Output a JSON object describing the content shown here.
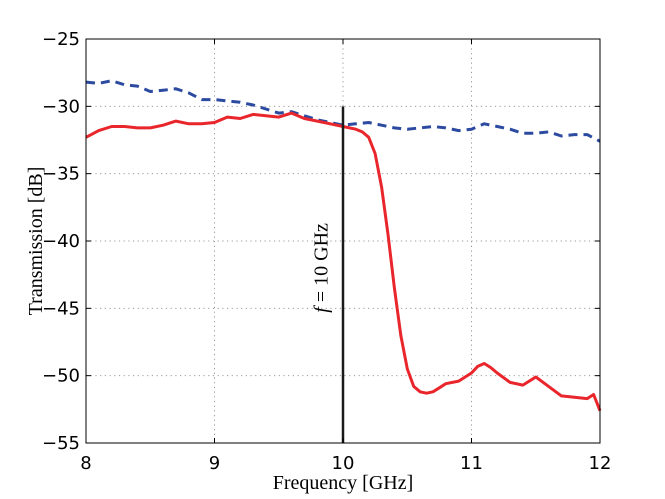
{
  "chart_data": {
    "type": "line",
    "title": "",
    "xlabel": "Frequency [GHz]",
    "ylabel": "Transmission [dB]",
    "xlim": [
      8,
      12
    ],
    "ylim": [
      -55,
      -25
    ],
    "xticks": [
      8,
      9,
      10,
      11,
      12
    ],
    "yticks": [
      -55,
      -50,
      -45,
      -40,
      -35,
      -30,
      -25
    ],
    "xtick_labels": [
      "8",
      "9",
      "10",
      "11",
      "12"
    ],
    "ytick_labels": [
      "−55",
      "−50",
      "−45",
      "−40",
      "−35",
      "−30",
      "−25"
    ],
    "grid": true,
    "series": [
      {
        "name": "dashed-blue",
        "color": "#2b4aa0",
        "style": "dashed",
        "x": [
          8.0,
          8.1,
          8.2,
          8.3,
          8.4,
          8.5,
          8.6,
          8.7,
          8.8,
          8.9,
          9.0,
          9.1,
          9.2,
          9.3,
          9.4,
          9.5,
          9.6,
          9.7,
          9.8,
          9.9,
          10.0,
          10.1,
          10.2,
          10.3,
          10.4,
          10.5,
          10.6,
          10.7,
          10.8,
          10.9,
          11.0,
          11.1,
          11.2,
          11.3,
          11.4,
          11.5,
          11.6,
          11.7,
          11.8,
          11.9,
          12.0
        ],
        "values": [
          -28.2,
          -28.3,
          -28.1,
          -28.4,
          -28.5,
          -28.9,
          -28.8,
          -28.7,
          -29.0,
          -29.5,
          -29.5,
          -29.6,
          -29.7,
          -29.9,
          -30.2,
          -30.5,
          -30.4,
          -30.7,
          -31.0,
          -31.2,
          -31.4,
          -31.3,
          -31.2,
          -31.4,
          -31.6,
          -31.7,
          -31.6,
          -31.5,
          -31.6,
          -31.8,
          -31.7,
          -31.3,
          -31.5,
          -31.7,
          -32.0,
          -32.0,
          -31.9,
          -32.2,
          -32.1,
          -32.1,
          -32.6
        ]
      },
      {
        "name": "solid-red",
        "color": "#e8262b",
        "style": "solid",
        "x": [
          8.0,
          8.1,
          8.2,
          8.3,
          8.4,
          8.5,
          8.6,
          8.7,
          8.8,
          8.9,
          9.0,
          9.1,
          9.2,
          9.3,
          9.4,
          9.5,
          9.6,
          9.7,
          9.8,
          9.9,
          10.0,
          10.1,
          10.15,
          10.2,
          10.25,
          10.3,
          10.35,
          10.4,
          10.45,
          10.5,
          10.55,
          10.6,
          10.65,
          10.7,
          10.75,
          10.8,
          10.9,
          11.0,
          11.05,
          11.1,
          11.15,
          11.2,
          11.3,
          11.4,
          11.5,
          11.6,
          11.7,
          11.8,
          11.9,
          11.95,
          12.0
        ],
        "values": [
          -32.3,
          -31.8,
          -31.5,
          -31.5,
          -31.6,
          -31.6,
          -31.4,
          -31.1,
          -31.3,
          -31.3,
          -31.2,
          -30.8,
          -30.9,
          -30.6,
          -30.7,
          -30.8,
          -30.5,
          -30.9,
          -31.1,
          -31.3,
          -31.5,
          -31.7,
          -31.9,
          -32.3,
          -33.5,
          -36.0,
          -39.5,
          -43.5,
          -47.0,
          -49.5,
          -50.8,
          -51.2,
          -51.3,
          -51.2,
          -50.9,
          -50.6,
          -50.4,
          -49.8,
          -49.3,
          -49.1,
          -49.4,
          -49.8,
          -50.5,
          -50.7,
          -50.1,
          -50.8,
          -51.5,
          -51.6,
          -51.7,
          -51.4,
          -52.6
        ]
      }
    ],
    "marker_line": {
      "x": 10,
      "y_from": -55,
      "y_to": -30,
      "color": "#1a1a1a"
    },
    "annotation": {
      "text_italic": "f",
      "text_rest": " = 10 GHz",
      "x": 9.88,
      "y": -42
    }
  }
}
